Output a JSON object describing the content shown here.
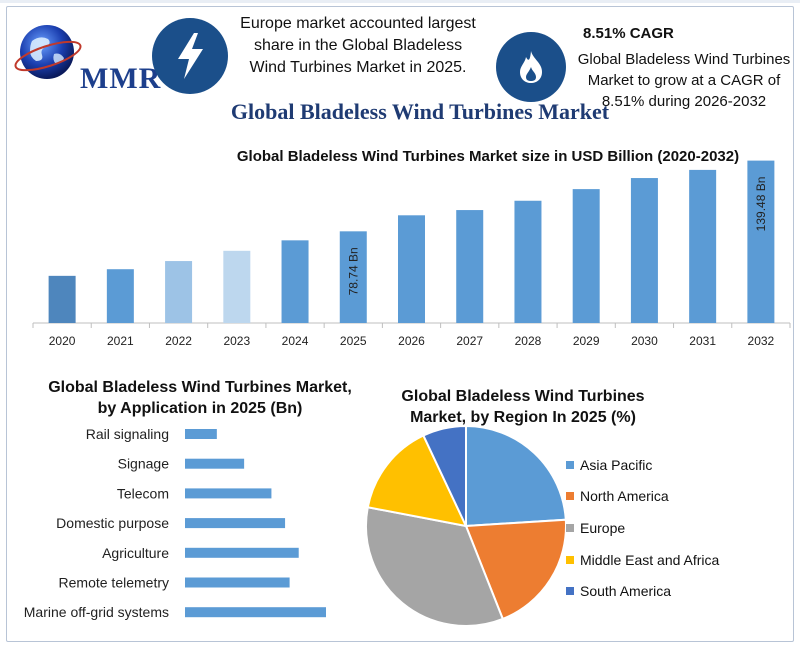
{
  "header": {
    "logo_text": "MMR",
    "europe_text": "Europe market accounted largest share in the Global Bladeless Wind Turbines Market in 2025.",
    "cagr_title": "8.51% CAGR",
    "cagr_text": "Global Bladeless Wind Turbines Market to grow at a CAGR of 8.51% during 2026-2032",
    "icons": [
      "globe-icon",
      "lightning-bolt-icon",
      "flame-icon"
    ],
    "icon_color": "#1b4f8a"
  },
  "main_title": "Global Bladeless Wind Turbines Market",
  "chart_data": [
    {
      "type": "bar",
      "title": "Global Bladeless Wind Turbines Market size in USD Billion (2020-2032)",
      "categories": [
        "2020",
        "2021",
        "2022",
        "2023",
        "2024",
        "2025",
        "2026",
        "2027",
        "2028",
        "2029",
        "2030",
        "2031",
        "2032"
      ],
      "values": [
        40.5,
        46.2,
        53.2,
        62.0,
        71.0,
        78.74,
        92.5,
        97.0,
        105.0,
        115.0,
        124.5,
        131.5,
        139.48
      ],
      "bar_colors": [
        "#4e86bd",
        "#5b9bd5",
        "#9dc3e6",
        "#bdd7ee",
        "#5b9bd5",
        "#5b9bd5",
        "#5b9bd5",
        "#5b9bd5",
        "#5b9bd5",
        "#5b9bd5",
        "#5b9bd5",
        "#5b9bd5",
        "#5b9bd5"
      ],
      "data_labels": [
        {
          "index": 5,
          "text": "78.74 Bn"
        },
        {
          "index": 12,
          "text": "139.48 Bn"
        }
      ],
      "ylim": [
        0,
        140
      ],
      "grid": false
    },
    {
      "type": "bar",
      "orientation": "horizontal",
      "title": "Global Bladeless Wind Turbines Market, by Application in 2025 (Bn)",
      "categories": [
        "Rail signaling",
        "Signage",
        "Telecom",
        "Domestic purpose",
        "Agriculture",
        "Remote telemetry",
        "Marine off-grid systems"
      ],
      "values": [
        3.5,
        6.5,
        9.5,
        11.0,
        12.5,
        11.5,
        15.5
      ],
      "xlim": [
        0,
        15.5
      ],
      "color": "#5b9bd5"
    },
    {
      "type": "pie",
      "title": "Global Bladeless Wind Turbines Market, by Region In 2025 (%)",
      "labels": [
        "Asia Pacific",
        "North America",
        "Europe",
        "Middle East and Africa",
        "South America"
      ],
      "values": [
        24,
        20,
        34,
        15,
        7
      ],
      "colors": [
        "#5b9bd5",
        "#ed7d31",
        "#a5a5a5",
        "#ffc000",
        "#4472c4"
      ],
      "legend_position": "right"
    }
  ]
}
